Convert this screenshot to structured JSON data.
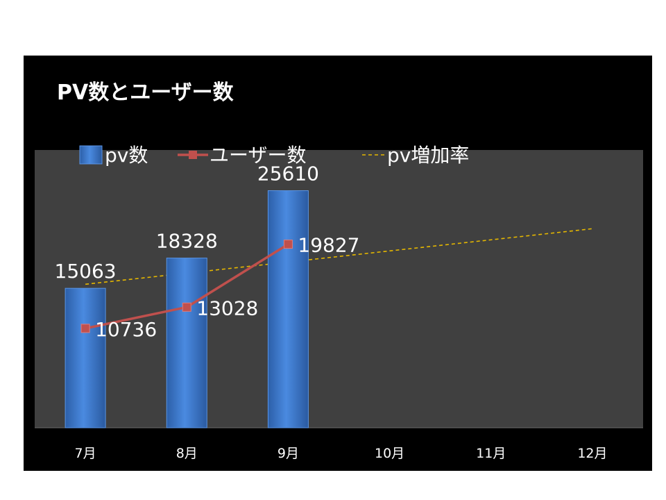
{
  "chart_data": {
    "type": "bar",
    "title": "PV数とユーザー数",
    "categories": [
      "7月",
      "8月",
      "9月",
      "10月",
      "11月",
      "12月"
    ],
    "series": [
      {
        "name": "pv数",
        "kind": "bar",
        "values": [
          15063,
          18328,
          25610,
          null,
          null,
          null
        ],
        "color": "#3b78d0"
      },
      {
        "name": "ユーザー数",
        "kind": "line",
        "values": [
          10736,
          13028,
          19827,
          null,
          null,
          null
        ],
        "color": "#c0504d"
      },
      {
        "name": "pv増加率",
        "kind": "trendline",
        "values": [
          15500,
          16700,
          17900,
          19100,
          20300,
          21500
        ],
        "color": "#e6b800"
      }
    ],
    "ylim": [
      0,
      30000
    ],
    "grid": false,
    "legend_position": "top",
    "colors": {
      "plot_background": "#404040",
      "panel_background": "#000000",
      "text": "#ffffff"
    }
  }
}
